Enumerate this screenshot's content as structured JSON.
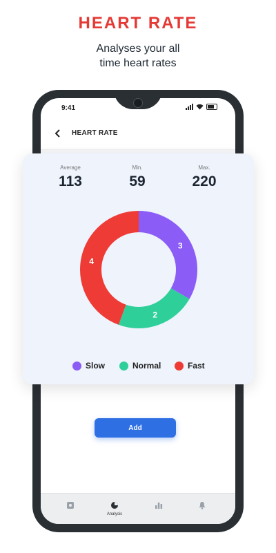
{
  "headline": "HEART RATE",
  "subline": [
    "Analyses your all",
    "time heart rates"
  ],
  "phone": {
    "status_time": "9:41",
    "header_title": "HEART RATE",
    "add_button_label": "Add",
    "nav": [
      {
        "icon": "heart-dashboard-icon",
        "label": ""
      },
      {
        "icon": "pie-chart-icon",
        "label": "Analysis"
      },
      {
        "icon": "bar-chart-icon",
        "label": ""
      },
      {
        "icon": "bell-icon",
        "label": ""
      }
    ]
  },
  "stats": [
    {
      "label": "Average",
      "value": "113"
    },
    {
      "label": "Min.",
      "value": "59"
    },
    {
      "label": "Max.",
      "value": "220"
    }
  ],
  "colors": {
    "accent": "#e53935",
    "slow": "#8b5cf6",
    "normal": "#2fcf9a",
    "fast": "#ef3b36",
    "button": "#2f6fe4"
  },
  "chart_data": {
    "type": "pie",
    "donut": true,
    "categories": [
      "Slow",
      "Normal",
      "Fast"
    ],
    "values": [
      3,
      2,
      4
    ],
    "colors": [
      "#8b5cf6",
      "#2fcf9a",
      "#ef3b36"
    ],
    "legend_position": "bottom"
  }
}
